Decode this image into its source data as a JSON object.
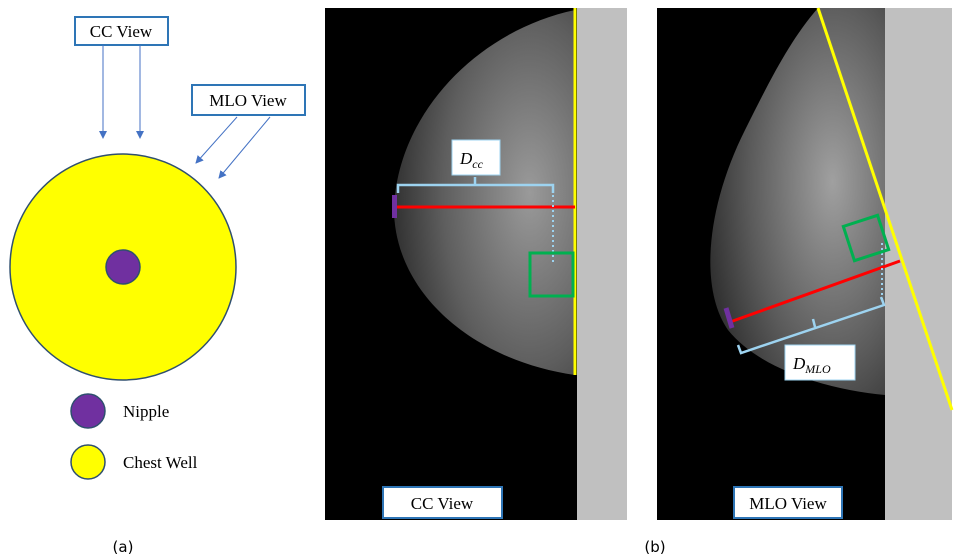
{
  "panel_a": {
    "cc_view": "CC View",
    "mlo_view": "MLO View",
    "legend": [
      {
        "label": "Nipple"
      },
      {
        "label": "Chest Well"
      }
    ],
    "caption": "(a)"
  },
  "panel_b": {
    "cc_image": {
      "distance": {
        "main": "D",
        "sub": "cc"
      },
      "label": "CC View"
    },
    "mlo_image": {
      "distance": {
        "main": "D",
        "sub": "MLO"
      },
      "label": "MLO View"
    },
    "caption": "(b)"
  }
}
